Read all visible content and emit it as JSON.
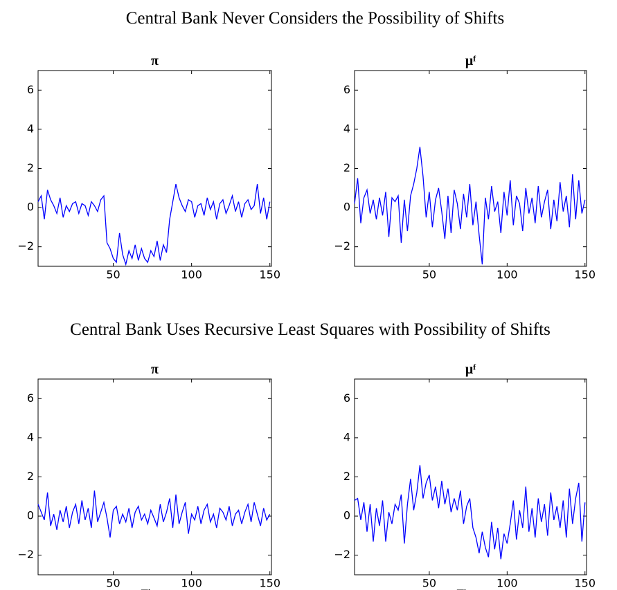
{
  "headings": [
    "Central Bank Never Considers the Possibility of Shifts",
    "Central Bank Uses Recursive Least Squares with Possibility of Shifts"
  ],
  "chart_data": [
    {
      "type": "line",
      "title": "π",
      "color": "#0000ff",
      "xlim": [
        2,
        151
      ],
      "ylim": [
        -3,
        7
      ],
      "xticks": [
        50,
        100,
        150
      ],
      "yticks": [
        {
          "value": -2,
          "label": "−2"
        },
        0,
        2,
        4,
        6
      ],
      "x": [
        2,
        4,
        6,
        8,
        10,
        12,
        14,
        16,
        18,
        20,
        22,
        24,
        26,
        28,
        30,
        32,
        34,
        36,
        38,
        40,
        42,
        44,
        46,
        48,
        50,
        52,
        54,
        56,
        58,
        60,
        62,
        64,
        66,
        68,
        70,
        72,
        74,
        76,
        78,
        80,
        82,
        84,
        86,
        88,
        90,
        92,
        94,
        96,
        98,
        100,
        102,
        104,
        106,
        108,
        110,
        112,
        114,
        116,
        118,
        120,
        122,
        124,
        126,
        128,
        130,
        132,
        134,
        136,
        138,
        140,
        142,
        144,
        146,
        148,
        150
      ],
      "values": [
        0.3,
        0.6,
        -0.6,
        0.9,
        0.4,
        0.1,
        -0.3,
        0.5,
        -0.5,
        0.1,
        -0.2,
        0.2,
        0.3,
        -0.3,
        0.2,
        0.1,
        -0.4,
        0.3,
        0.1,
        -0.2,
        0.4,
        0.6,
        -1.8,
        -2.1,
        -2.6,
        -2.8,
        -1.3,
        -2.4,
        -2.9,
        -2.2,
        -2.6,
        -1.9,
        -2.7,
        -2.1,
        -2.6,
        -2.8,
        -2.2,
        -2.5,
        -1.7,
        -2.7,
        -1.9,
        -2.3,
        -0.6,
        0.3,
        1.2,
        0.5,
        0.1,
        -0.2,
        0.4,
        0.3,
        -0.5,
        0.1,
        0.2,
        -0.4,
        0.5,
        -0.1,
        0.3,
        -0.6,
        0.2,
        0.4,
        -0.3,
        0.1,
        0.6,
        -0.2,
        0.3,
        -0.5,
        0.2,
        0.4,
        -0.1,
        0.1,
        1.2,
        -0.3,
        0.5,
        -0.6,
        0.3
      ]
    },
    {
      "type": "line",
      "title": "μᶠ",
      "color": "#0000ff",
      "xlim": [
        2,
        151
      ],
      "ylim": [
        -3,
        7
      ],
      "xticks": [
        50,
        100,
        150
      ],
      "yticks": [
        {
          "value": -2,
          "label": "−2"
        },
        0,
        2,
        4,
        6
      ],
      "x": [
        2,
        4,
        6,
        8,
        10,
        12,
        14,
        16,
        18,
        20,
        22,
        24,
        26,
        28,
        30,
        32,
        34,
        36,
        38,
        40,
        42,
        44,
        46,
        48,
        50,
        52,
        54,
        56,
        58,
        60,
        62,
        64,
        66,
        68,
        70,
        72,
        74,
        76,
        78,
        80,
        82,
        84,
        86,
        88,
        90,
        92,
        94,
        96,
        98,
        100,
        102,
        104,
        106,
        108,
        110,
        112,
        114,
        116,
        118,
        120,
        122,
        124,
        126,
        128,
        130,
        132,
        134,
        136,
        138,
        140,
        142,
        144,
        146,
        148,
        150
      ],
      "values": [
        0.2,
        1.5,
        -0.8,
        0.5,
        0.9,
        -0.3,
        0.4,
        -0.6,
        0.5,
        -0.4,
        0.8,
        -1.5,
        0.5,
        0.3,
        0.6,
        -1.8,
        0.4,
        -1.2,
        0.6,
        1.2,
        2.0,
        3.1,
        1.6,
        -0.5,
        0.8,
        -1.0,
        0.4,
        1.0,
        -0.2,
        -1.6,
        0.6,
        -1.3,
        0.9,
        0.2,
        -1.1,
        0.7,
        -0.5,
        1.2,
        -0.9,
        0.3,
        -1.4,
        -2.9,
        0.5,
        -0.6,
        1.1,
        -0.2,
        0.3,
        -1.3,
        0.8,
        -0.4,
        1.4,
        -0.9,
        0.6,
        0.2,
        -1.2,
        1.0,
        -0.3,
        0.5,
        -0.8,
        1.1,
        -0.5,
        0.3,
        0.9,
        -1.1,
        0.4,
        -0.7,
        1.3,
        -0.2,
        0.6,
        -1.0,
        1.7,
        -0.6,
        1.4,
        -0.3,
        0.4
      ]
    },
    {
      "type": "line",
      "title": "π",
      "xlabel": "Time",
      "color": "#0000ff",
      "xlim": [
        2,
        151
      ],
      "ylim": [
        -3,
        7
      ],
      "xticks": [
        50,
        100,
        150
      ],
      "yticks": [
        {
          "value": -2,
          "label": "−2"
        },
        0,
        2,
        4,
        6
      ],
      "x": [
        2,
        4,
        6,
        8,
        10,
        12,
        14,
        16,
        18,
        20,
        22,
        24,
        26,
        28,
        30,
        32,
        34,
        36,
        38,
        40,
        42,
        44,
        46,
        48,
        50,
        52,
        54,
        56,
        58,
        60,
        62,
        64,
        66,
        68,
        70,
        72,
        74,
        76,
        78,
        80,
        82,
        84,
        86,
        88,
        90,
        92,
        94,
        96,
        98,
        100,
        102,
        104,
        106,
        108,
        110,
        112,
        114,
        116,
        118,
        120,
        122,
        124,
        126,
        128,
        130,
        132,
        134,
        136,
        138,
        140,
        142,
        144,
        146,
        148,
        150
      ],
      "values": [
        0.6,
        0.2,
        -0.2,
        1.2,
        -0.5,
        0.1,
        -0.7,
        0.3,
        -0.3,
        0.5,
        -0.6,
        0.2,
        0.6,
        -0.4,
        0.8,
        -0.2,
        0.4,
        -0.6,
        1.3,
        -0.3,
        0.2,
        0.7,
        -0.1,
        -1.1,
        0.3,
        0.5,
        -0.4,
        0.1,
        -0.3,
        0.4,
        -0.6,
        0.2,
        0.5,
        -0.2,
        0.1,
        -0.4,
        0.3,
        -0.1,
        -0.5,
        0.6,
        -0.3,
        0.2,
        0.9,
        -0.6,
        1.1,
        -0.4,
        0.2,
        0.7,
        -0.9,
        0.1,
        -0.2,
        0.5,
        -0.4,
        0.3,
        0.6,
        -0.3,
        0.1,
        -0.6,
        0.4,
        0.2,
        -0.2,
        0.5,
        -0.5,
        0.1,
        0.3,
        -0.4,
        0.2,
        0.6,
        -0.3,
        0.7,
        0.1,
        -0.5,
        0.4,
        -0.2,
        0.1
      ]
    },
    {
      "type": "line",
      "title": "μᶠ",
      "xlabel": "Time",
      "color": "#0000ff",
      "xlim": [
        2,
        151
      ],
      "ylim": [
        -3,
        7
      ],
      "xticks": [
        50,
        100,
        150
      ],
      "yticks": [
        {
          "value": -2,
          "label": "−2"
        },
        0,
        2,
        4,
        6
      ],
      "x": [
        2,
        4,
        6,
        8,
        10,
        12,
        14,
        16,
        18,
        20,
        22,
        24,
        26,
        28,
        30,
        32,
        34,
        36,
        38,
        40,
        42,
        44,
        46,
        48,
        50,
        52,
        54,
        56,
        58,
        60,
        62,
        64,
        66,
        68,
        70,
        72,
        74,
        76,
        78,
        80,
        82,
        84,
        86,
        88,
        90,
        92,
        94,
        96,
        98,
        100,
        102,
        104,
        106,
        108,
        110,
        112,
        114,
        116,
        118,
        120,
        122,
        124,
        126,
        128,
        130,
        132,
        134,
        136,
        138,
        140,
        142,
        144,
        146,
        148,
        150
      ],
      "values": [
        0.8,
        0.9,
        -0.2,
        0.7,
        -0.8,
        0.6,
        -1.3,
        0.4,
        -0.5,
        0.8,
        -1.3,
        0.2,
        -0.4,
        0.6,
        0.3,
        1.1,
        -1.4,
        0.6,
        1.9,
        0.3,
        1.2,
        2.6,
        0.9,
        1.7,
        2.1,
        0.8,
        1.5,
        0.4,
        1.8,
        0.6,
        1.4,
        0.2,
        0.9,
        0.3,
        1.3,
        -0.4,
        0.5,
        0.9,
        -0.6,
        -1.1,
        -1.9,
        -0.8,
        -1.6,
        -2.1,
        -0.3,
        -1.7,
        -0.6,
        -2.2,
        -0.9,
        -1.4,
        -0.4,
        0.8,
        -1.2,
        0.3,
        -0.6,
        1.5,
        -0.8,
        0.4,
        -1.1,
        0.9,
        -0.3,
        0.6,
        -1.0,
        1.2,
        -0.2,
        0.5,
        -0.6,
        0.8,
        -1.1,
        1.4,
        -0.4,
        0.9,
        1.7,
        -1.3,
        0.7
      ]
    }
  ]
}
